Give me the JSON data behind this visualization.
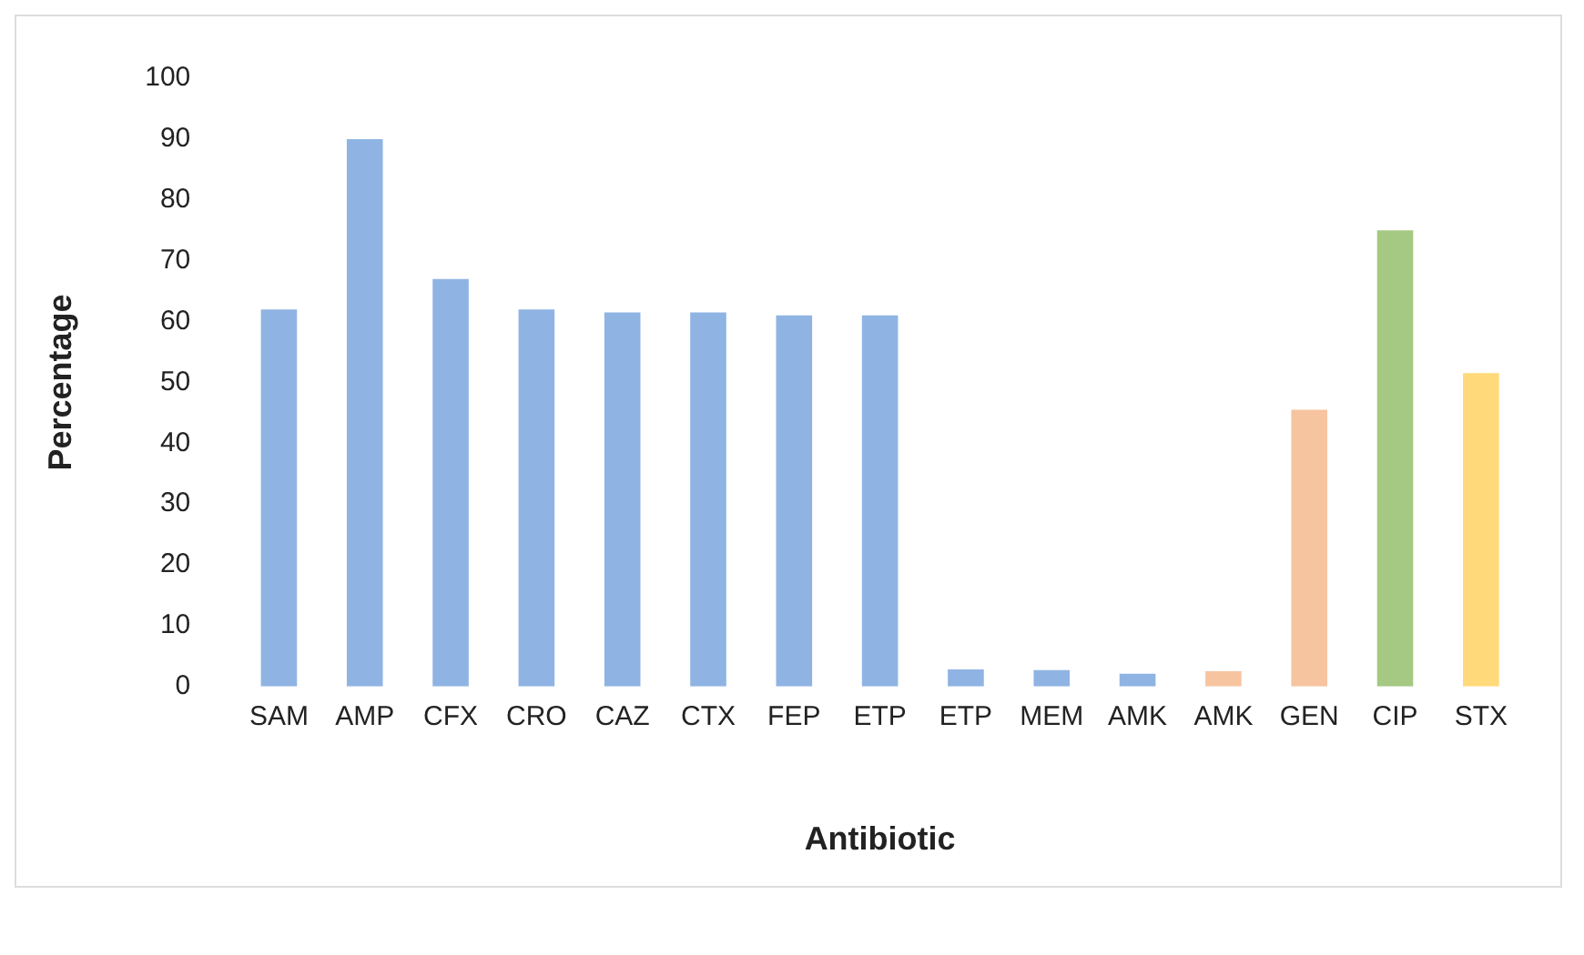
{
  "chart_data": {
    "type": "bar",
    "xlabel": "Antibiotic",
    "ylabel": "Percentage",
    "categories": [
      "SAM",
      "AMP",
      "CFX",
      "CRO",
      "CAZ",
      "CTX",
      "FEP",
      "ETP",
      "ETP",
      "MEM",
      "AMK",
      "AMK",
      "GEN",
      "CIP",
      "STX"
    ],
    "values": [
      62,
      90,
      67,
      62,
      61.5,
      61.5,
      61,
      61,
      2.8,
      2.7,
      2.1,
      2.5,
      45.5,
      75,
      51.5
    ],
    "colors": [
      "#8fb4e3",
      "#8fb4e3",
      "#8fb4e3",
      "#8fb4e3",
      "#8fb4e3",
      "#8fb4e3",
      "#8fb4e3",
      "#8fb4e3",
      "#8fb4e3",
      "#8fb4e3",
      "#8fb4e3",
      "#f7c4a0",
      "#f7c4a0",
      "#a5c882",
      "#ffd97a"
    ],
    "ylim": [
      0,
      100
    ],
    "yticks": [
      0,
      10,
      20,
      30,
      40,
      50,
      60,
      70,
      80,
      90,
      100
    ],
    "grid": false,
    "legend": false
  }
}
